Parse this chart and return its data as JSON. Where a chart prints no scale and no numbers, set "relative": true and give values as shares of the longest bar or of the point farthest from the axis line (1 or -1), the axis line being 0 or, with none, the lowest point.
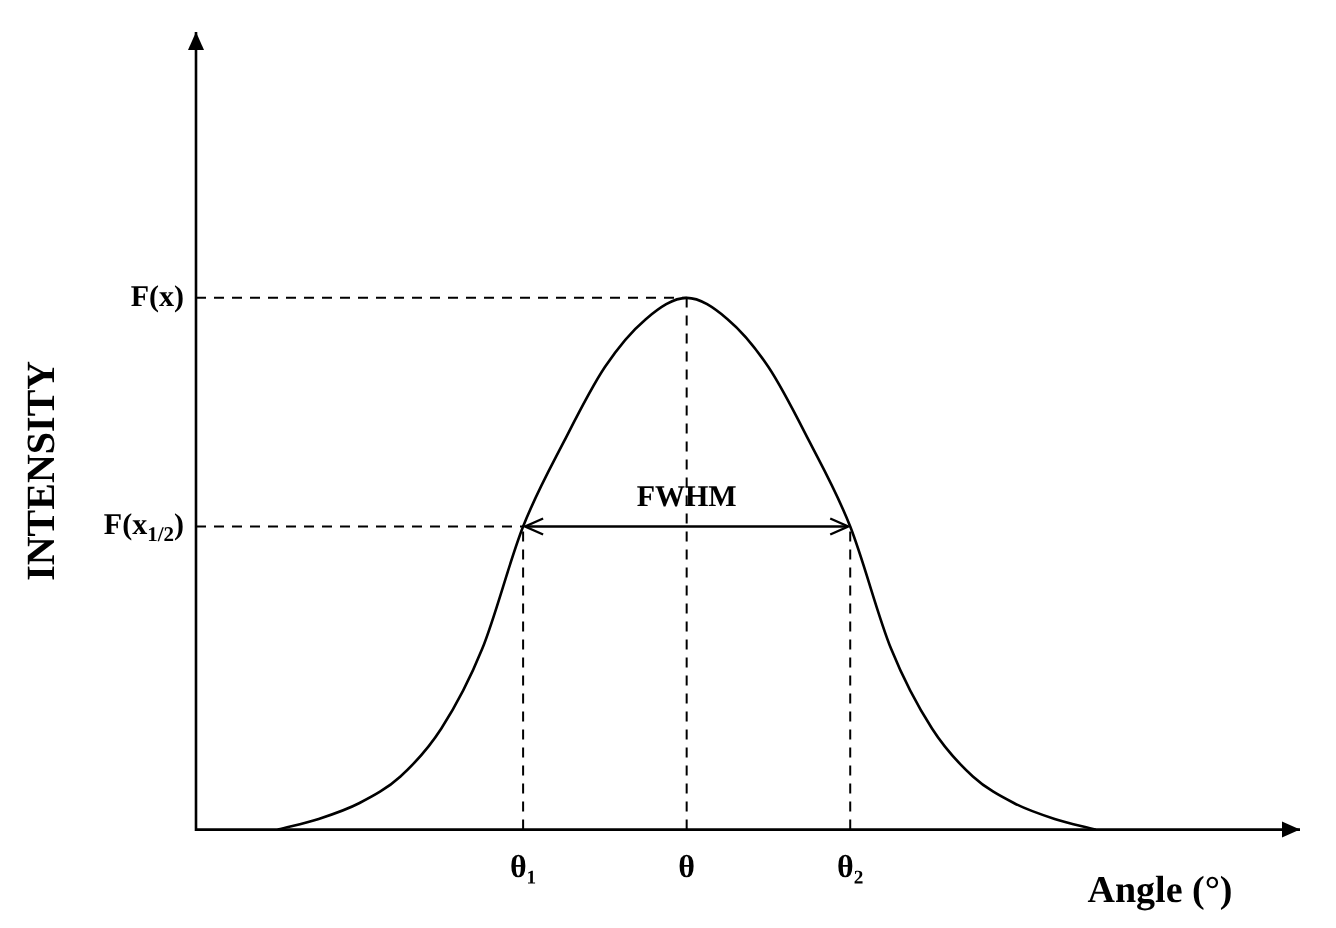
{
  "chart_data": {
    "type": "line",
    "relative": true,
    "xlabel": "Angle (°)",
    "ylabel": "INTENSITY",
    "categories": [
      null,
      null,
      null,
      null,
      null,
      null,
      null,
      null,
      "θ₁",
      null,
      null,
      null,
      "θ",
      null,
      null,
      null,
      "θ₂",
      null,
      null,
      null,
      null,
      null,
      null,
      null,
      null,
      null,
      null,
      null
    ],
    "series": [
      {
        "color": "#000000",
        "values": [
          null,
          null,
          0,
          0.02,
          0.05,
          0.1,
          0.19,
          0.34,
          0.57,
          0.73,
          0.87,
          0.96,
          1,
          0.96,
          0.87,
          0.73,
          0.57,
          0.34,
          0.19,
          0.1,
          0.05,
          0.02,
          0,
          null,
          null,
          null,
          null,
          null
        ]
      }
    ],
    "ref_lines": [
      {
        "axis": "y",
        "value": 1,
        "label": "F(x)",
        "line_style": "dashed"
      },
      {
        "axis": "y",
        "value": 0.57,
        "label": "F(x$_{1/2}$)",
        "line_style": "dashed"
      },
      {
        "axis": "x",
        "value": "θ₁",
        "line_style": "dashed"
      },
      {
        "axis": "x",
        "value": "θ",
        "line_style": "dashed"
      },
      {
        "axis": "x",
        "value": "θ₂",
        "line_style": "dashed"
      }
    ],
    "annotations": [
      {
        "text": "FWHM",
        "x": "θ",
        "y": 0.57
      }
    ],
    "legend": false,
    "grid": false,
    "marker": "none",
    "line_style": "solid"
  }
}
